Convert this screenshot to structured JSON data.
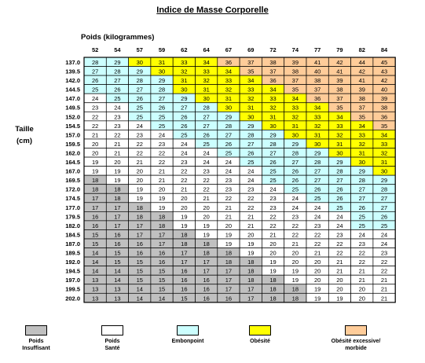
{
  "title": "Indice de Masse Corporelle",
  "x_axis_label": "Poids (kilogrammes)",
  "y_axis_label_line1": "Taille",
  "y_axis_label_line2": "(cm)",
  "colors": {
    "insuffisant": "#c0c0c0",
    "sante": "#ffffff",
    "embonpoint": "#ccffff",
    "obesite": "#ffff00",
    "morbide": "#ffcc99"
  },
  "legend": [
    {
      "key": "insuffisant",
      "line1": "Poids",
      "line2": "Insuffisant"
    },
    {
      "key": "sante",
      "line1": "Poids",
      "line2": "Santé"
    },
    {
      "key": "embonpoint",
      "line1": "Embonpoint",
      "line2": ""
    },
    {
      "key": "obesite",
      "line1": "Obésité",
      "line2": ""
    },
    {
      "key": "morbide",
      "line1": "Obésité excessive/",
      "line2": "morbide"
    }
  ],
  "chart_data": {
    "type": "table",
    "title": "Indice de Masse Corporelle",
    "xlabel": "Poids (kilogrammes)",
    "ylabel": "Taille (cm)",
    "weights": [
      "52",
      "54",
      "57",
      "59",
      "62",
      "64",
      "67",
      "69",
      "72",
      "74",
      "77",
      "79",
      "82",
      "84"
    ],
    "heights": [
      "137.0",
      "139.5",
      "142.0",
      "144.5",
      "147.0",
      "149.5",
      "152.0",
      "154.5",
      "157.0",
      "159.5",
      "162.0",
      "164.5",
      "167.0",
      "169.5",
      "172.0",
      "174.5",
      "177.0",
      "179.5",
      "182.0",
      "184.5",
      "187.0",
      "189.5",
      "192.0",
      "194.5",
      "197.0",
      "199.5",
      "202.0"
    ],
    "values": [
      [
        28,
        29,
        30,
        31,
        33,
        34,
        36,
        37,
        38,
        39,
        41,
        42,
        44,
        45
      ],
      [
        27,
        28,
        29,
        30,
        32,
        33,
        34,
        35,
        37,
        38,
        40,
        41,
        42,
        43
      ],
      [
        26,
        27,
        28,
        29,
        31,
        32,
        33,
        34,
        36,
        37,
        38,
        39,
        41,
        42
      ],
      [
        25,
        26,
        27,
        28,
        30,
        31,
        32,
        33,
        34,
        35,
        37,
        38,
        39,
        40
      ],
      [
        24,
        25,
        26,
        27,
        29,
        30,
        31,
        32,
        33,
        34,
        36,
        37,
        38,
        39
      ],
      [
        23,
        24,
        25,
        26,
        27,
        28,
        30,
        31,
        32,
        33,
        34,
        35,
        37,
        38
      ],
      [
        22,
        23,
        25,
        25,
        26,
        27,
        29,
        30,
        31,
        32,
        33,
        34,
        35,
        36
      ],
      [
        22,
        23,
        24,
        25,
        26,
        27,
        28,
        29,
        30,
        31,
        32,
        33,
        34,
        35
      ],
      [
        21,
        22,
        23,
        24,
        25,
        26,
        27,
        28,
        29,
        30,
        31,
        32,
        33,
        34
      ],
      [
        20,
        21,
        22,
        23,
        24,
        25,
        26,
        27,
        28,
        29,
        30,
        31,
        32,
        33
      ],
      [
        20,
        21,
        22,
        22,
        24,
        24,
        25,
        26,
        27,
        28,
        29,
        30,
        31,
        32
      ],
      [
        19,
        20,
        21,
        22,
        23,
        24,
        24,
        25,
        26,
        27,
        28,
        29,
        30,
        31
      ],
      [
        19,
        19,
        20,
        21,
        22,
        23,
        24,
        24,
        25,
        26,
        27,
        28,
        29,
        30
      ],
      [
        18,
        19,
        20,
        21,
        22,
        22,
        23,
        24,
        25,
        26,
        27,
        27,
        28,
        29
      ],
      [
        18,
        18,
        19,
        20,
        21,
        22,
        23,
        23,
        24,
        25,
        26,
        26,
        27,
        28
      ],
      [
        17,
        18,
        19,
        19,
        20,
        21,
        22,
        22,
        23,
        24,
        25,
        26,
        27,
        27
      ],
      [
        17,
        17,
        18,
        19,
        20,
        20,
        21,
        22,
        23,
        24,
        24,
        25,
        26,
        27
      ],
      [
        16,
        17,
        18,
        18,
        19,
        20,
        21,
        21,
        22,
        23,
        24,
        24,
        25,
        26
      ],
      [
        16,
        17,
        17,
        18,
        19,
        19,
        20,
        21,
        22,
        22,
        23,
        24,
        25,
        25
      ],
      [
        15,
        16,
        17,
        17,
        18,
        19,
        19,
        20,
        21,
        22,
        22,
        23,
        24,
        24
      ],
      [
        15,
        16,
        16,
        17,
        18,
        18,
        19,
        19,
        20,
        21,
        22,
        22,
        23,
        24
      ],
      [
        14,
        15,
        16,
        16,
        17,
        18,
        18,
        19,
        20,
        20,
        21,
        22,
        22,
        23
      ],
      [
        14,
        15,
        15,
        16,
        17,
        17,
        18,
        18,
        19,
        20,
        20,
        21,
        22,
        22
      ],
      [
        14,
        14,
        15,
        15,
        16,
        17,
        17,
        18,
        19,
        19,
        20,
        21,
        21,
        22
      ],
      [
        13,
        14,
        15,
        15,
        16,
        16,
        17,
        18,
        18,
        19,
        20,
        20,
        21,
        21
      ],
      [
        13,
        13,
        14,
        15,
        16,
        16,
        17,
        17,
        18,
        18,
        19,
        20,
        20,
        21
      ],
      [
        13,
        13,
        14,
        14,
        15,
        16,
        16,
        17,
        18,
        18,
        19,
        19,
        20,
        21
      ]
    ],
    "thresholds": {
      "insuffisant_max": 18,
      "sante_max": 24,
      "embonpoint_max": 29,
      "obesite_max": 34
    }
  }
}
